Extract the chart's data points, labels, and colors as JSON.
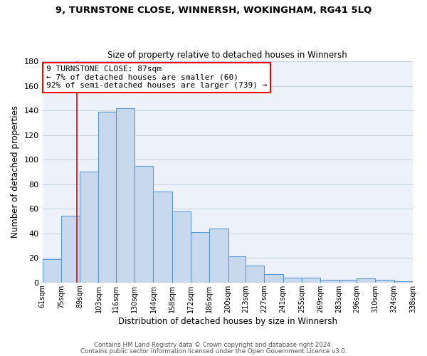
{
  "title": "9, TURNSTONE CLOSE, WINNERSH, WOKINGHAM, RG41 5LQ",
  "subtitle": "Size of property relative to detached houses in Winnersh",
  "xlabel": "Distribution of detached houses by size in Winnersh",
  "ylabel": "Number of detached properties",
  "bar_color": "#c8d9ee",
  "bar_edge_color": "#5b9bd5",
  "grid_color": "#c8d4e3",
  "background_color": "#edf2f9",
  "bin_labels": [
    "61sqm",
    "75sqm",
    "89sqm",
    "103sqm",
    "116sqm",
    "130sqm",
    "144sqm",
    "158sqm",
    "172sqm",
    "186sqm",
    "200sqm",
    "213sqm",
    "227sqm",
    "241sqm",
    "255sqm",
    "269sqm",
    "283sqm",
    "296sqm",
    "310sqm",
    "324sqm",
    "338sqm"
  ],
  "bar_heights": [
    19,
    54,
    90,
    139,
    142,
    95,
    74,
    58,
    41,
    44,
    21,
    14,
    7,
    4,
    4,
    2,
    2,
    3,
    2,
    1
  ],
  "ylim": [
    0,
    180
  ],
  "yticks": [
    0,
    20,
    40,
    60,
    80,
    100,
    120,
    140,
    160,
    180
  ],
  "red_line_x": 87,
  "bin_edges_sqm": [
    61,
    75,
    89,
    103,
    116,
    130,
    144,
    158,
    172,
    186,
    200,
    213,
    227,
    241,
    255,
    269,
    283,
    296,
    310,
    324,
    338
  ],
  "annotation_line1": "9 TURNSTONE CLOSE: 87sqm",
  "annotation_line2": "← 7% of detached houses are smaller (60)",
  "annotation_line3": "92% of semi-detached houses are larger (739) →",
  "footer_line1": "Contains HM Land Registry data © Crown copyright and database right 2024.",
  "footer_line2": "Contains public sector information licensed under the Open Government Licence v3.0."
}
